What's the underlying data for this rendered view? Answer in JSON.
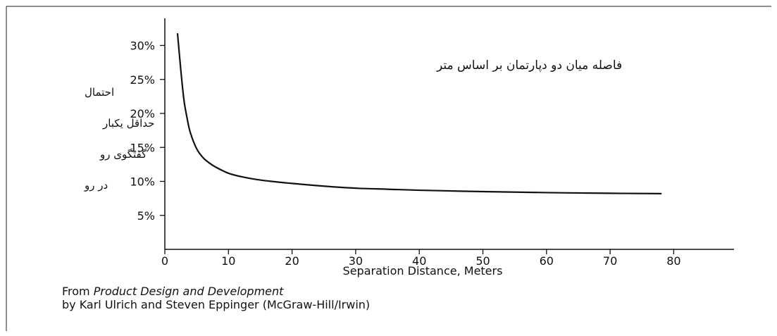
{
  "chart_data": {
    "type": "line",
    "title": "فاصله میان دو دپارتمان بر اساس متر",
    "xlabel": "Separation Distance, Meters",
    "ylabel_lines": [
      "احتمال",
      "حداقل یکبار",
      "گفتگوی رو",
      "در رو"
    ],
    "xlim": [
      0,
      90
    ],
    "ylim": [
      0,
      35
    ],
    "x_ticks": [
      0,
      10,
      20,
      30,
      40,
      50,
      60,
      70,
      80
    ],
    "y_ticks": [
      5,
      10,
      15,
      20,
      25,
      30
    ],
    "y_tick_labels": [
      "5%",
      "10%",
      "15%",
      "20%",
      "25%",
      "30%"
    ],
    "grid": false,
    "series": [
      {
        "color": "#111111",
        "x": [
          2,
          2.5,
          3,
          3.5,
          4,
          5,
          6,
          7,
          8,
          10,
          12,
          15,
          20,
          25,
          30,
          35,
          40,
          50,
          60,
          70,
          78
        ],
        "y": [
          31.7,
          26.5,
          22.0,
          19.3,
          17.2,
          14.8,
          13.5,
          12.7,
          12.1,
          11.2,
          10.7,
          10.2,
          9.7,
          9.3,
          9.0,
          8.85,
          8.7,
          8.5,
          8.35,
          8.25,
          8.2
        ]
      }
    ]
  },
  "credit": {
    "line1_prefix": "From ",
    "line1_italic": "Product Design and Development",
    "line2": "by Karl Ulrich and Steven Eppinger (McGraw-Hill/Irwin)"
  }
}
